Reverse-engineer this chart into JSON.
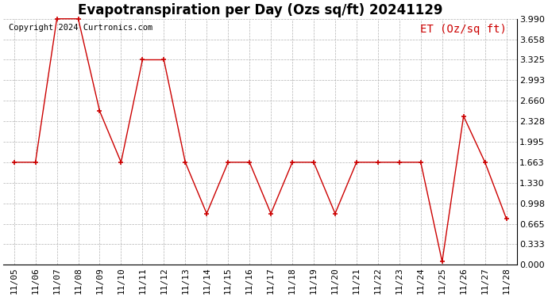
{
  "title": "Evapotranspiration per Day (Ozs sq/ft) 20241129",
  "copyright": "Copyright 2024 Curtronics.com",
  "legend_label": "ET (Oz/sq ft)",
  "dates": [
    "11/05",
    "11/06",
    "11/07",
    "11/08",
    "11/09",
    "11/10",
    "11/11",
    "11/12",
    "11/13",
    "11/14",
    "11/15",
    "11/16",
    "11/17",
    "11/18",
    "11/19",
    "11/20",
    "11/21",
    "11/22",
    "11/23",
    "11/24",
    "11/25",
    "11/26",
    "11/27",
    "11/28"
  ],
  "values": [
    1.663,
    1.663,
    3.99,
    3.99,
    2.494,
    1.663,
    3.325,
    3.325,
    1.663,
    0.831,
    1.663,
    1.663,
    0.831,
    1.663,
    1.663,
    0.831,
    1.663,
    1.663,
    1.663,
    1.663,
    0.05,
    2.411,
    1.663,
    0.748
  ],
  "line_color": "#cc0000",
  "marker": "+",
  "grid_color": "#aaaaaa",
  "background_color": "#ffffff",
  "ylim": [
    0.0,
    3.99
  ],
  "yticks": [
    0.0,
    0.333,
    0.665,
    0.998,
    1.33,
    1.663,
    1.995,
    2.328,
    2.66,
    2.993,
    3.325,
    3.658,
    3.99
  ],
  "title_fontsize": 12,
  "tick_fontsize": 8,
  "legend_fontsize": 10,
  "copyright_fontsize": 7.5
}
